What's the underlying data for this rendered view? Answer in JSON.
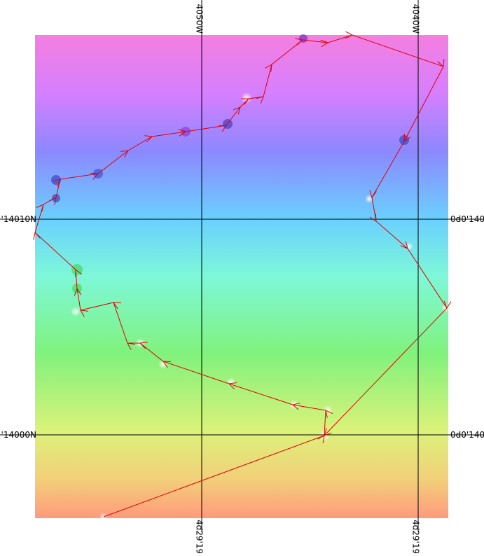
{
  "grid_labels": {
    "top": [
      "4050W",
      "4040W"
    ],
    "bottom": [
      "4d29'19",
      "4d29'19"
    ],
    "left": [
      "'14010N",
      "'14000N"
    ],
    "right": [
      "0d0'140",
      "0d0'140"
    ]
  }
}
